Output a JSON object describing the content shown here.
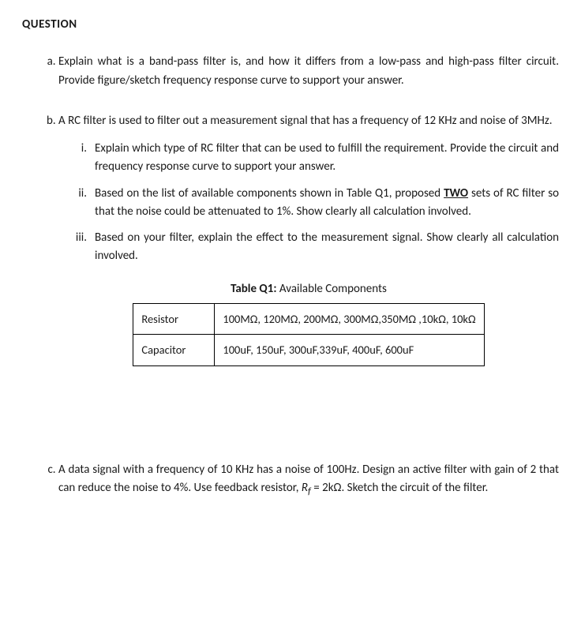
{
  "title": "QUESTION",
  "a": {
    "text": "Explain what is a band-pass filter is, and how it differs from a low-pass and high-pass filter circuit. Provide figure/sketch frequency response curve to support your answer."
  },
  "b": {
    "intro": "A RC filter is used to filter out a measurement signal that has a frequency of 12 KHz and noise of 3MHz.",
    "i": "Explain which type of RC filter that can be used to fulfill the requirement. Provide the circuit and frequency response curve to support your answer.",
    "ii_pre": "Based on the list of available components shown in Table Q1, proposed ",
    "ii_two": "TWO",
    "ii_post": " sets of RC filter so that the noise could be attenuated to 1%. Show clearly all calculation involved.",
    "iii": "Based on your filter, explain the effect to the measurement signal. Show clearly all calculation involved."
  },
  "table": {
    "caption_bold": "Table Q1:",
    "caption_rest": " Available Components",
    "row1_label": "Resistor",
    "row1_value": "100MΩ, 120MΩ, 200MΩ, 300MΩ,350MΩ ,10kΩ, 10kΩ",
    "row2_label": "Capacitor",
    "row2_value": "100uF, 150uF, 300uF,339uF, 400uF, 600uF"
  },
  "c": {
    "pre": "A data signal with a frequency of 10 KHz has a noise of 100Hz. Design an active filter with gain of 2 that can reduce the noise to 4%. Use feedback resistor, ",
    "rf_sym": "R",
    "rf_sub": "f",
    "rf_eq": " = 2kΩ. Sketch the circuit of the filter."
  },
  "numerals": {
    "i": "i.",
    "ii": "ii.",
    "iii": "iii."
  }
}
